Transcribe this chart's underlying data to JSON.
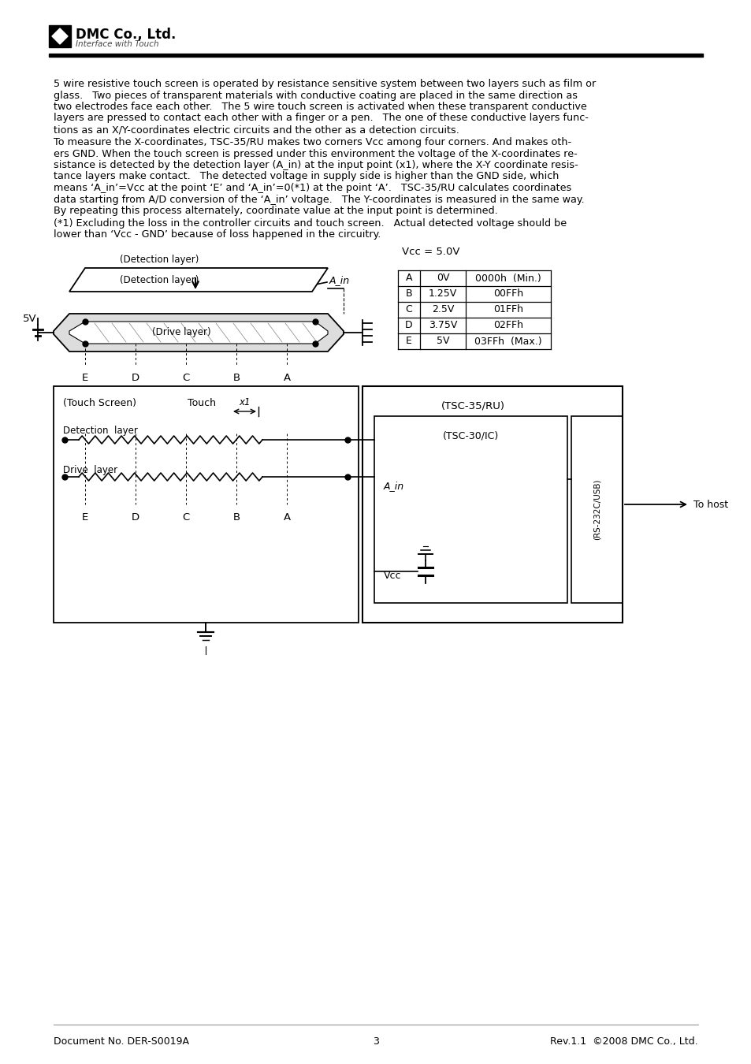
{
  "company": "DMC Co., Ltd.",
  "tagline": "Interface with Touch",
  "para1_lines": [
    "5 wire resistive touch screen is operated by resistance sensitive system between two layers such as film or",
    "glass.   Two pieces of transparent materials with conductive coating are placed in the same direction as",
    "two electrodes face each other.   The 5 wire touch screen is activated when these transparent conductive",
    "layers are pressed to contact each other with a finger or a pen.   The one of these conductive layers func-",
    "tions as an X/Y-coordinates electric circuits and the other as a detection circuits."
  ],
  "para2_lines": [
    "To measure the X-coordinates, TSC-35/RU makes two corners Vcc among four corners. And makes oth-",
    "ers GND. When the touch screen is pressed under this environment the voltage of the X-coordinates re-",
    "sistance is detected by the detection layer (A_in) at the input point (x1), where the X-Y coordinate resis-",
    "tance layers make contact.   The detected voltage in supply side is higher than the GND side, which",
    "means ‘A_in’=Vcc at the point ‘E’ and ‘A_in’=0(*1) at the point ‘A’.   TSC-35/RU calculates coordinates",
    "data starting from A/D conversion of the ‘A_in’ voltage.   The Y-coordinates is measured in the same way.",
    "By repeating this process alternately, coordinate value at the input point is determined."
  ],
  "para3_lines": [
    "(*1) Excluding the loss in the controller circuits and touch screen.   Actual detected voltage should be",
    "lower than ‘Vcc - GND’ because of loss happened in the circuitry."
  ],
  "table_title": "Vcc = 5.0V",
  "table_rows": [
    [
      "A",
      "0V",
      "0000h  (Min.)"
    ],
    [
      "B",
      "1.25V",
      "00FFh"
    ],
    [
      "C",
      "2.5V",
      "01FFh"
    ],
    [
      "D",
      "3.75V",
      "02FFh"
    ],
    [
      "E",
      "5V",
      "03FFh  (Max.)"
    ]
  ],
  "footer_left": "Document No. DER-S0019A",
  "footer_center": "3",
  "footer_right": "Rev.1.1  ©2008 DMC Co., Ltd."
}
